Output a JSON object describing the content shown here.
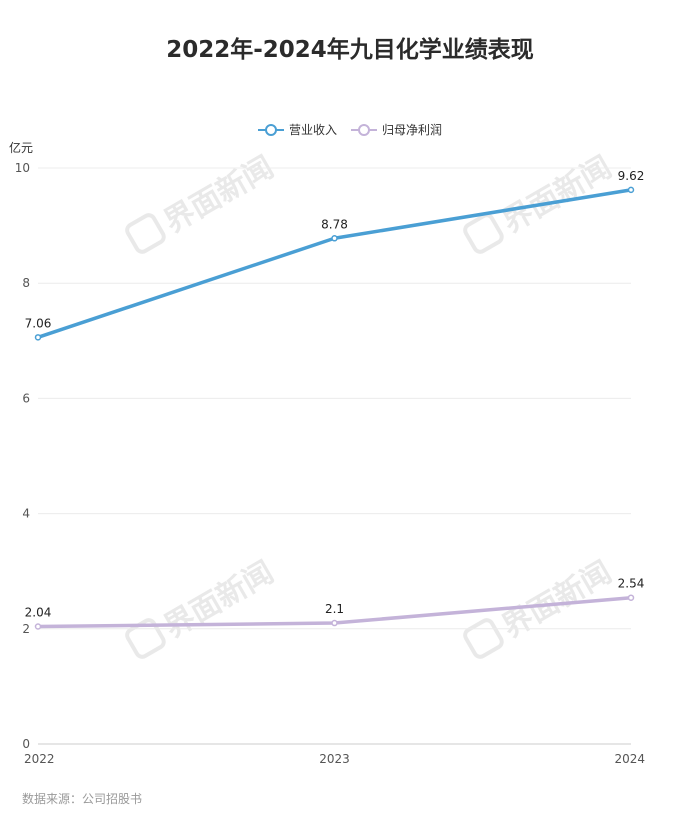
{
  "chart_data": {
    "type": "line",
    "title": "2022年-2024年九目化学业绩表现",
    "ylabel": "亿元",
    "categories": [
      "2022",
      "2023",
      "2024"
    ],
    "series": [
      {
        "name": "营业收入",
        "values": [
          7.06,
          8.78,
          9.62
        ],
        "color": "#4a9fd4"
      },
      {
        "name": "归母净利润",
        "values": [
          2.04,
          2.1,
          2.54
        ],
        "color": "#c4b3d9"
      }
    ],
    "ylim": [
      0,
      10
    ],
    "yticks": [
      "0",
      "2",
      "4",
      "6",
      "8",
      "10"
    ],
    "grid": true,
    "legend": "top-center",
    "source": "数据来源：公司招股书",
    "watermark": "界面新闻"
  }
}
